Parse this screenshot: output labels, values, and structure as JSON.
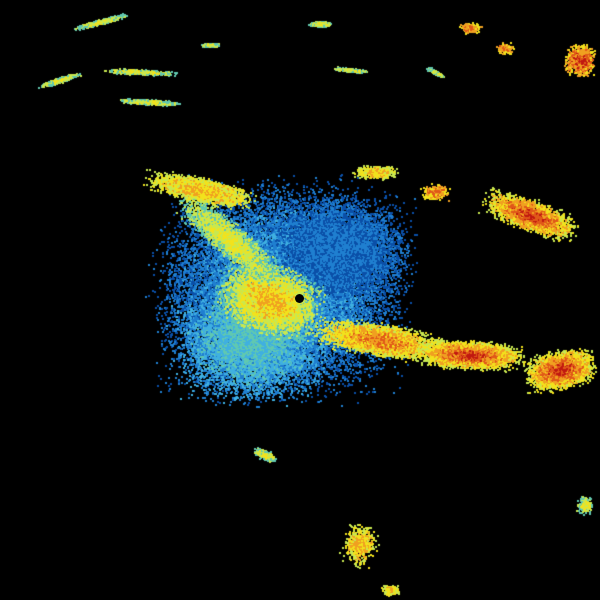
{
  "radar": {
    "background": "#000000",
    "palette": {
      "deep_blue": "#0a4fa8",
      "blue": "#1f7fd0",
      "light_blue": "#3fb0e0",
      "teal": "#60c8b0",
      "green_yellow": "#c8e850",
      "yellow": "#f2e21c",
      "orange": "#f0a020",
      "red_orange": "#e05818",
      "red": "#c01810"
    },
    "site_marker_color": "#000000"
  }
}
